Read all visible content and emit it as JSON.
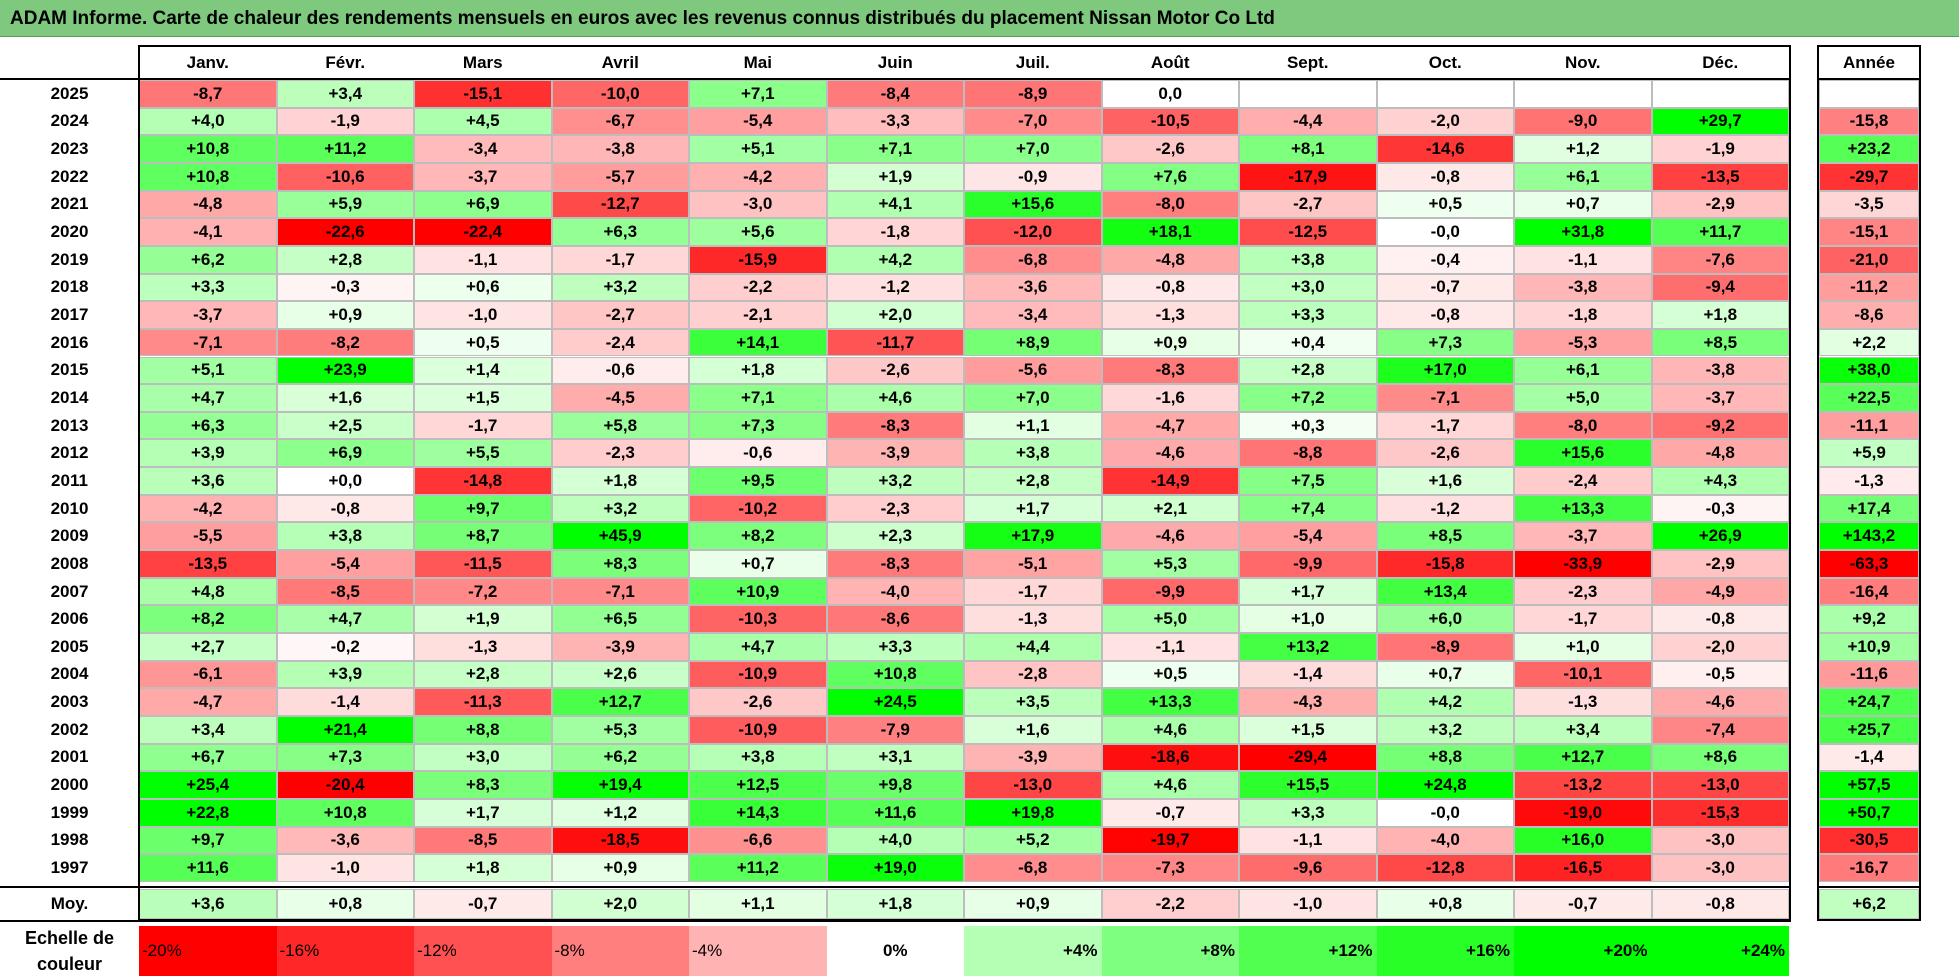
{
  "title": "ADAM Informe. Carte de chaleur des rendements mensuels en euros avec les revenus connus distribués du placement Nissan Motor Co Ltd",
  "chart_data": {
    "type": "heatmap",
    "title": "ADAM Informe. Carte de chaleur des rendements mensuels en euros avec les revenus connus distribués du placement Nissan Motor Co Ltd",
    "columns": [
      "Janv.",
      "Févr.",
      "Mars",
      "Avril",
      "Mai",
      "Juin",
      "Juil.",
      "Août",
      "Sept.",
      "Oct.",
      "Nov.",
      "Déc."
    ],
    "year_header": "Année",
    "rows": [
      {
        "year": "2025",
        "values": [
          "-8,7",
          "+3,4",
          "-15,1",
          "-10,0",
          "+7,1",
          "-8,4",
          "-8,9",
          "0,0",
          "",
          "",
          "",
          ""
        ],
        "annual": ""
      },
      {
        "year": "2024",
        "values": [
          "+4,0",
          "-1,9",
          "+4,5",
          "-6,7",
          "-5,4",
          "-3,3",
          "-7,0",
          "-10,5",
          "-4,4",
          "-2,0",
          "-9,0",
          "+29,7"
        ],
        "annual": "-15,8"
      },
      {
        "year": "2023",
        "values": [
          "+10,8",
          "+11,2",
          "-3,4",
          "-3,8",
          "+5,1",
          "+7,1",
          "+7,0",
          "-2,6",
          "+8,1",
          "-14,6",
          "+1,2",
          "-1,9"
        ],
        "annual": "+23,2"
      },
      {
        "year": "2022",
        "values": [
          "+10,8",
          "-10,6",
          "-3,7",
          "-5,7",
          "-4,2",
          "+1,9",
          "-0,9",
          "+7,6",
          "-17,9",
          "-0,8",
          "+6,1",
          "-13,5"
        ],
        "annual": "-29,7"
      },
      {
        "year": "2021",
        "values": [
          "-4,8",
          "+5,9",
          "+6,9",
          "-12,7",
          "-3,0",
          "+4,1",
          "+15,6",
          "-8,0",
          "-2,7",
          "+0,5",
          "+0,7",
          "-2,9"
        ],
        "annual": "-3,5"
      },
      {
        "year": "2020",
        "values": [
          "-4,1",
          "-22,6",
          "-22,4",
          "+6,3",
          "+5,6",
          "-1,8",
          "-12,0",
          "+18,1",
          "-12,5",
          "-0,0",
          "+31,8",
          "+11,7"
        ],
        "annual": "-15,1"
      },
      {
        "year": "2019",
        "values": [
          "+6,2",
          "+2,8",
          "-1,1",
          "-1,7",
          "-15,9",
          "+4,2",
          "-6,8",
          "-4,8",
          "+3,8",
          "-0,4",
          "-1,1",
          "-7,6"
        ],
        "annual": "-21,0"
      },
      {
        "year": "2018",
        "values": [
          "+3,3",
          "-0,3",
          "+0,6",
          "+3,2",
          "-2,2",
          "-1,2",
          "-3,6",
          "-0,8",
          "+3,0",
          "-0,7",
          "-3,8",
          "-9,4"
        ],
        "annual": "-11,2"
      },
      {
        "year": "2017",
        "values": [
          "-3,7",
          "+0,9",
          "-1,0",
          "-2,7",
          "-2,1",
          "+2,0",
          "-3,4",
          "-1,3",
          "+3,3",
          "-0,8",
          "-1,8",
          "+1,8"
        ],
        "annual": "-8,6"
      },
      {
        "year": "2016",
        "values": [
          "-7,1",
          "-8,2",
          "+0,5",
          "-2,4",
          "+14,1",
          "-11,7",
          "+8,9",
          "+0,9",
          "+0,4",
          "+7,3",
          "-5,3",
          "+8,5"
        ],
        "annual": "+2,2"
      },
      {
        "year": "2015",
        "values": [
          "+5,1",
          "+23,9",
          "+1,4",
          "-0,6",
          "+1,8",
          "-2,6",
          "-5,6",
          "-8,3",
          "+2,8",
          "+17,0",
          "+6,1",
          "-3,8"
        ],
        "annual": "+38,0"
      },
      {
        "year": "2014",
        "values": [
          "+4,7",
          "+1,6",
          "+1,5",
          "-4,5",
          "+7,1",
          "+4,6",
          "+7,0",
          "-1,6",
          "+7,2",
          "-7,1",
          "+5,0",
          "-3,7"
        ],
        "annual": "+22,5"
      },
      {
        "year": "2013",
        "values": [
          "+6,3",
          "+2,5",
          "-1,7",
          "+5,8",
          "+7,3",
          "-8,3",
          "+1,1",
          "-4,7",
          "+0,3",
          "-1,7",
          "-8,0",
          "-9,2"
        ],
        "annual": "-11,1"
      },
      {
        "year": "2012",
        "values": [
          "+3,9",
          "+6,9",
          "+5,5",
          "-2,3",
          "-0,6",
          "-3,9",
          "+3,8",
          "-4,6",
          "-8,8",
          "-2,6",
          "+15,6",
          "-4,8"
        ],
        "annual": "+5,9"
      },
      {
        "year": "2011",
        "values": [
          "+3,6",
          "+0,0",
          "-14,8",
          "+1,8",
          "+9,5",
          "+3,2",
          "+2,8",
          "-14,9",
          "+7,5",
          "+1,6",
          "-2,4",
          "+4,3"
        ],
        "annual": "-1,3"
      },
      {
        "year": "2010",
        "values": [
          "-4,2",
          "-0,8",
          "+9,7",
          "+3,2",
          "-10,2",
          "-2,3",
          "+1,7",
          "+2,1",
          "+7,4",
          "-1,2",
          "+13,3",
          "-0,3"
        ],
        "annual": "+17,4"
      },
      {
        "year": "2009",
        "values": [
          "-5,5",
          "+3,8",
          "+8,7",
          "+45,9",
          "+8,2",
          "+2,3",
          "+17,9",
          "-4,6",
          "-5,4",
          "+8,5",
          "-3,7",
          "+26,9"
        ],
        "annual": "+143,2"
      },
      {
        "year": "2008",
        "values": [
          "-13,5",
          "-5,4",
          "-11,5",
          "+8,3",
          "+0,7",
          "-8,3",
          "-5,1",
          "+5,3",
          "-9,9",
          "-15,8",
          "-33,9",
          "-2,9"
        ],
        "annual": "-63,3"
      },
      {
        "year": "2007",
        "values": [
          "+4,8",
          "-8,5",
          "-7,2",
          "-7,1",
          "+10,9",
          "-4,0",
          "-1,7",
          "-9,9",
          "+1,7",
          "+13,4",
          "-2,3",
          "-4,9"
        ],
        "annual": "-16,4"
      },
      {
        "year": "2006",
        "values": [
          "+8,2",
          "+4,7",
          "+1,9",
          "+6,5",
          "-10,3",
          "-8,6",
          "-1,3",
          "+5,0",
          "+1,0",
          "+6,0",
          "-1,7",
          "-0,8"
        ],
        "annual": "+9,2"
      },
      {
        "year": "2005",
        "values": [
          "+2,7",
          "-0,2",
          "-1,3",
          "-3,9",
          "+4,7",
          "+3,3",
          "+4,4",
          "-1,1",
          "+13,2",
          "-8,9",
          "+1,0",
          "-2,0"
        ],
        "annual": "+10,9"
      },
      {
        "year": "2004",
        "values": [
          "-6,1",
          "+3,9",
          "+2,8",
          "+2,6",
          "-10,9",
          "+10,8",
          "-2,8",
          "+0,5",
          "-1,4",
          "+0,7",
          "-10,1",
          "-0,5"
        ],
        "annual": "-11,6"
      },
      {
        "year": "2003",
        "values": [
          "-4,7",
          "-1,4",
          "-11,3",
          "+12,7",
          "-2,6",
          "+24,5",
          "+3,5",
          "+13,3",
          "-4,3",
          "+4,2",
          "-1,3",
          "-4,6"
        ],
        "annual": "+24,7"
      },
      {
        "year": "2002",
        "values": [
          "+3,4",
          "+21,4",
          "+8,8",
          "+5,3",
          "-10,9",
          "-7,9",
          "+1,6",
          "+4,6",
          "+1,5",
          "+3,2",
          "+3,4",
          "-7,4"
        ],
        "annual": "+25,7"
      },
      {
        "year": "2001",
        "values": [
          "+6,7",
          "+7,3",
          "+3,0",
          "+6,2",
          "+3,8",
          "+3,1",
          "-3,9",
          "-18,6",
          "-29,4",
          "+8,8",
          "+12,7",
          "+8,6"
        ],
        "annual": "-1,4"
      },
      {
        "year": "2000",
        "values": [
          "+25,4",
          "-20,4",
          "+8,3",
          "+19,4",
          "+12,5",
          "+9,8",
          "-13,0",
          "+4,6",
          "+15,5",
          "+24,8",
          "-13,2",
          "-13,0"
        ],
        "annual": "+57,5"
      },
      {
        "year": "1999",
        "values": [
          "+22,8",
          "+10,8",
          "+1,7",
          "+1,2",
          "+14,3",
          "+11,6",
          "+19,8",
          "-0,7",
          "+3,3",
          "-0,0",
          "-19,0",
          "-15,3"
        ],
        "annual": "+50,7"
      },
      {
        "year": "1998",
        "values": [
          "+9,7",
          "-3,6",
          "-8,5",
          "-18,5",
          "-6,6",
          "+4,0",
          "+5,2",
          "-19,7",
          "-1,1",
          "-4,0",
          "+16,0",
          "-3,0"
        ],
        "annual": "-30,5"
      },
      {
        "year": "1997",
        "values": [
          "+11,6",
          "-1,0",
          "+1,8",
          "+0,9",
          "+11,2",
          "+19,0",
          "-6,8",
          "-7,3",
          "-9,6",
          "-12,8",
          "-16,5",
          "-3,0"
        ],
        "annual": "-16,7"
      }
    ],
    "average": {
      "label": "Moy.",
      "values": [
        "+3,6",
        "+0,8",
        "-0,7",
        "+2,0",
        "+1,1",
        "+1,8",
        "+0,9",
        "-2,2",
        "-1,0",
        "+0,8",
        "-0,7",
        "-0,8"
      ],
      "annual": "+6,2"
    },
    "scale": {
      "label": "Echelle de couleur",
      "steps": [
        "-20%",
        "-16%",
        "-12%",
        "-8%",
        "-4%",
        "0%",
        "+4%",
        "+8%",
        "+12%",
        "+16%",
        "+20%",
        "+24%"
      ]
    },
    "colors": {
      "max_negative": "#ff0000",
      "neutral": "#ffffff",
      "max_positive": "#00ff00",
      "title_bg": "#7fc97f"
    }
  }
}
